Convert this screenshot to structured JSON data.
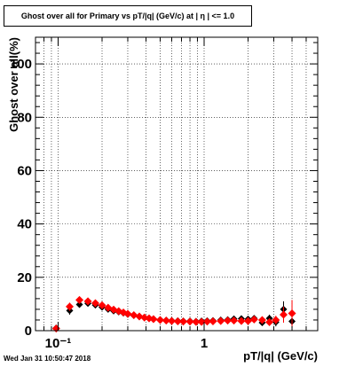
{
  "title": "Ghost over all for Primary vs pT/|q| (GeV/c) at |  η | <= 1.0",
  "timestamp": "Wed Jan 31 10:50:47 2018",
  "chart_data": {
    "type": "scatter",
    "title": "Ghost over all for Primary vs pT/|q| (GeV/c) at |  η | <= 1.0",
    "xlabel": "pT/|q| (GeV/c)",
    "ylabel": "Ghost over all(%)",
    "xscale": "log",
    "xlim": [
      0.07,
      6.0
    ],
    "ylim": [
      0,
      110
    ],
    "grid": true,
    "xticks": [
      {
        "value": 0.1,
        "label": "10⁻¹"
      },
      {
        "value": 1,
        "label": "1"
      }
    ],
    "yticks": [
      0,
      20,
      40,
      60,
      80,
      100
    ],
    "series": [
      {
        "color": "#000000",
        "marker": "diamond",
        "x": [
          0.097,
          0.12,
          0.14,
          0.16,
          0.18,
          0.2,
          0.22,
          0.24,
          0.26,
          0.28,
          0.3,
          0.33,
          0.36,
          0.39,
          0.42,
          0.45,
          0.5,
          0.55,
          0.6,
          0.66,
          0.72,
          0.8,
          0.88,
          0.96,
          1.05,
          1.15,
          1.3,
          1.45,
          1.6,
          1.8,
          2.0,
          2.2,
          2.5,
          2.8,
          3.1,
          3.5,
          4.0
        ],
        "y": [
          1.0,
          7.5,
          9.8,
          10.2,
          9.6,
          8.8,
          8.0,
          7.4,
          7.0,
          6.6,
          6.1,
          5.7,
          5.3,
          5.0,
          4.7,
          4.4,
          4.1,
          3.9,
          3.8,
          3.7,
          3.6,
          3.6,
          3.5,
          3.6,
          3.7,
          3.8,
          4.0,
          4.1,
          4.4,
          4.5,
          4.3,
          4.6,
          3.0,
          4.6,
          3.2,
          8.0,
          3.5
        ],
        "yerr": [
          1.2,
          1.5,
          1.0,
          0.8,
          0.7,
          0.6,
          0.6,
          0.5,
          0.5,
          0.5,
          0.5,
          0.4,
          0.4,
          0.4,
          0.4,
          0.4,
          0.4,
          0.4,
          0.4,
          0.4,
          0.4,
          0.4,
          0.4,
          0.5,
          0.5,
          0.5,
          0.6,
          0.6,
          0.7,
          0.8,
          0.9,
          1.0,
          1.2,
          1.4,
          1.6,
          3.0,
          2.5
        ]
      },
      {
        "color": "#ff0000",
        "marker": "diamond",
        "x": [
          0.097,
          0.12,
          0.14,
          0.16,
          0.18,
          0.2,
          0.22,
          0.24,
          0.26,
          0.28,
          0.3,
          0.33,
          0.36,
          0.39,
          0.42,
          0.45,
          0.5,
          0.55,
          0.6,
          0.66,
          0.72,
          0.8,
          0.88,
          0.96,
          1.05,
          1.15,
          1.3,
          1.45,
          1.6,
          1.8,
          2.0,
          2.2,
          2.5,
          2.8,
          3.1,
          3.5,
          4.0
        ],
        "y": [
          0.8,
          9.0,
          11.5,
          11.0,
          10.3,
          9.5,
          8.6,
          7.9,
          7.3,
          6.8,
          6.3,
          5.8,
          5.3,
          4.9,
          4.6,
          4.3,
          4.0,
          3.8,
          3.6,
          3.5,
          3.4,
          3.4,
          3.3,
          3.3,
          3.4,
          3.5,
          3.6,
          3.8,
          3.8,
          3.6,
          3.6,
          4.2,
          4.0,
          3.2,
          4.0,
          6.0,
          6.5
        ],
        "yerr": [
          1.0,
          1.5,
          1.0,
          0.8,
          0.7,
          0.6,
          0.6,
          0.5,
          0.5,
          0.5,
          0.5,
          0.4,
          0.4,
          0.4,
          0.4,
          0.4,
          0.4,
          0.4,
          0.4,
          0.4,
          0.4,
          0.4,
          0.4,
          0.5,
          0.5,
          0.5,
          0.6,
          0.6,
          0.7,
          0.8,
          0.9,
          1.0,
          1.2,
          1.4,
          1.6,
          3.0,
          5.0
        ]
      }
    ]
  }
}
